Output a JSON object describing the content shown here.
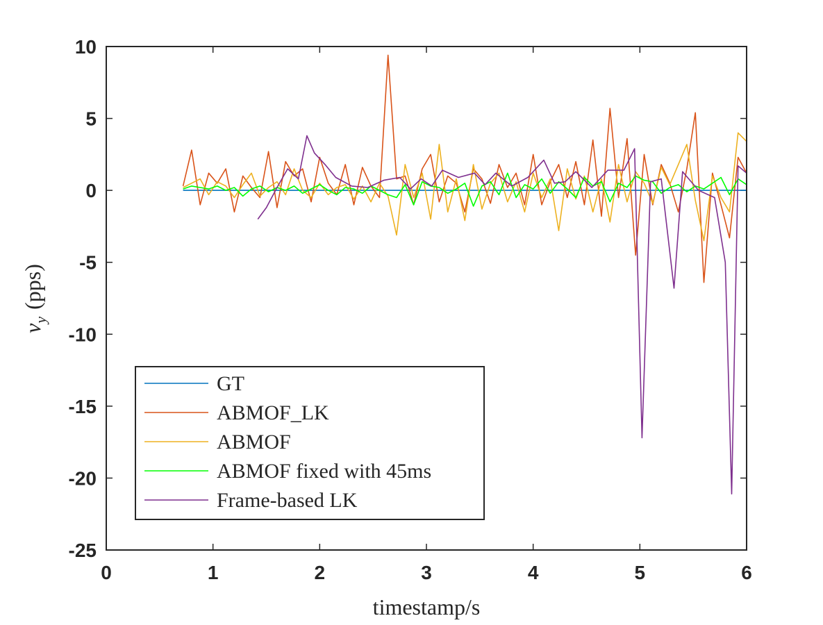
{
  "chart_data": {
    "type": "line",
    "xlabel": "timestamp/s",
    "ylabel": {
      "symbol": "v",
      "subscript": "y",
      "unit": "(pps)"
    },
    "xlim": [
      0,
      6
    ],
    "xticks": [
      0,
      1,
      2,
      3,
      4,
      5,
      6
    ],
    "ylim": [
      -25,
      10
    ],
    "yticks": [
      -25,
      -20,
      -15,
      -10,
      -5,
      0,
      5,
      10
    ],
    "grid": false,
    "legend": "lower left",
    "series": [
      {
        "name": "GT",
        "color": "#0072bd",
        "x": [
          0.72,
          6.0
        ],
        "values": [
          0,
          0
        ]
      },
      {
        "name": "ABMOF_LK",
        "color": "#d95319",
        "x": [
          0.72,
          0.8,
          0.88,
          0.96,
          1.04,
          1.12,
          1.2,
          1.28,
          1.36,
          1.44,
          1.52,
          1.6,
          1.68,
          1.76,
          1.84,
          1.92,
          2.0,
          2.08,
          2.16,
          2.24,
          2.32,
          2.4,
          2.48,
          2.56,
          2.64,
          2.72,
          2.8,
          2.88,
          2.96,
          3.04,
          3.12,
          3.2,
          3.28,
          3.36,
          3.44,
          3.52,
          3.6,
          3.68,
          3.76,
          3.84,
          3.92,
          4.0,
          4.08,
          4.16,
          4.24,
          4.32,
          4.4,
          4.48,
          4.56,
          4.64,
          4.72,
          4.8,
          4.88,
          4.96,
          5.04,
          5.12,
          5.2,
          5.28,
          5.36,
          5.44,
          5.52,
          5.6,
          5.68,
          5.76,
          5.84,
          5.92,
          6.0
        ],
        "values": [
          0.3,
          2.8,
          -1.0,
          1.2,
          0.5,
          1.5,
          -1.5,
          1.0,
          0.2,
          -0.5,
          2.7,
          -1.2,
          2.0,
          1.0,
          1.5,
          -0.8,
          2.3,
          0.5,
          -0.3,
          1.8,
          -1.0,
          1.6,
          0.3,
          -0.5,
          9.4,
          0.8,
          1.0,
          -1.0,
          1.5,
          2.5,
          -0.8,
          1.0,
          0.5,
          -1.5,
          1.5,
          0.8,
          -0.9,
          1.8,
          0.2,
          1.2,
          -1.0,
          2.5,
          -1.0,
          0.6,
          1.8,
          -0.5,
          2.0,
          -1.0,
          3.5,
          -1.8,
          5.7,
          -0.5,
          3.6,
          -4.5,
          2.5,
          -1.0,
          1.8,
          0.5,
          -1.5,
          1.5,
          5.4,
          -6.4,
          1.2,
          -1.0,
          -3.3,
          2.3,
          1.2
        ]
      },
      {
        "name": "ABMOF",
        "color": "#edb120",
        "x": [
          0.72,
          0.8,
          0.88,
          0.96,
          1.04,
          1.12,
          1.2,
          1.28,
          1.36,
          1.44,
          1.52,
          1.6,
          1.68,
          1.76,
          1.84,
          1.92,
          2.0,
          2.08,
          2.16,
          2.24,
          2.32,
          2.4,
          2.48,
          2.56,
          2.64,
          2.72,
          2.8,
          2.88,
          2.96,
          3.04,
          3.12,
          3.2,
          3.28,
          3.36,
          3.44,
          3.52,
          3.6,
          3.68,
          3.76,
          3.84,
          3.92,
          4.0,
          4.08,
          4.16,
          4.24,
          4.32,
          4.4,
          4.48,
          4.56,
          4.64,
          4.72,
          4.8,
          4.88,
          4.96,
          5.04,
          5.12,
          5.2,
          5.28,
          5.36,
          5.44,
          5.52,
          5.6,
          5.68,
          5.76,
          5.84,
          5.92,
          6.0
        ],
        "values": [
          0.2,
          0.5,
          0.8,
          -0.3,
          0.6,
          0.3,
          -0.5,
          0.4,
          1.2,
          -0.4,
          0.2,
          0.6,
          -0.3,
          1.5,
          0.0,
          -0.5,
          0.5,
          -0.3,
          0.2,
          0.4,
          -0.6,
          0.3,
          -0.8,
          0.5,
          -0.4,
          -3.1,
          1.8,
          -0.5,
          1.2,
          -2.0,
          3.2,
          -1.5,
          0.8,
          -2.1,
          1.8,
          -1.3,
          0.5,
          1.2,
          -0.8,
          0.6,
          -1.5,
          1.2,
          -0.5,
          0.8,
          -2.8,
          1.5,
          -0.6,
          1.0,
          -1.5,
          0.8,
          -2.2,
          1.8,
          -0.8,
          1.3,
          0.5,
          -0.9,
          1.6,
          0.4,
          1.8,
          3.2,
          -0.7,
          -3.5,
          1.0,
          -0.5,
          -1.5,
          4.0,
          3.4
        ]
      },
      {
        "name": "ABMOF fixed with 45ms",
        "color": "#00ff00",
        "x": [
          0.72,
          0.8,
          0.88,
          0.96,
          1.04,
          1.12,
          1.2,
          1.28,
          1.36,
          1.44,
          1.52,
          1.6,
          1.68,
          1.76,
          1.84,
          1.92,
          2.0,
          2.08,
          2.16,
          2.24,
          2.32,
          2.4,
          2.48,
          2.56,
          2.64,
          2.72,
          2.8,
          2.88,
          2.96,
          3.04,
          3.12,
          3.2,
          3.28,
          3.36,
          3.44,
          3.52,
          3.6,
          3.68,
          3.76,
          3.84,
          3.92,
          4.0,
          4.08,
          4.16,
          4.24,
          4.32,
          4.4,
          4.48,
          4.56,
          4.64,
          4.72,
          4.8,
          4.88,
          4.96,
          5.04,
          5.12,
          5.2,
          5.28,
          5.36,
          5.44,
          5.52,
          5.6,
          5.68,
          5.76,
          5.84,
          5.92,
          6.0
        ],
        "values": [
          0.1,
          0.3,
          0.2,
          0.1,
          0.3,
          0.0,
          0.2,
          -0.4,
          0.1,
          0.3,
          -0.1,
          0.2,
          0.0,
          0.3,
          -0.2,
          0.1,
          0.4,
          0.0,
          -0.3,
          0.2,
          0.1,
          -0.2,
          0.3,
          0.0,
          -0.3,
          -0.5,
          0.4,
          -1.0,
          0.6,
          0.3,
          0.2,
          -0.2,
          0.1,
          0.5,
          -1.1,
          0.3,
          0.6,
          -0.3,
          1.2,
          -0.5,
          0.4,
          0.1,
          0.8,
          -0.2,
          0.6,
          0.1,
          -0.5,
          0.9,
          0.3,
          0.6,
          -0.8,
          0.5,
          0.2,
          1.0,
          0.7,
          0.6,
          -0.2,
          0.2,
          0.4,
          -0.1,
          0.3,
          0.1,
          0.5,
          0.9,
          -0.3,
          0.8,
          0.4
        ]
      },
      {
        "name": "Frame-based LK",
        "color": "#7e2f8e",
        "x": [
          1.42,
          1.5,
          1.6,
          1.7,
          1.8,
          1.88,
          1.95,
          2.05,
          2.15,
          2.3,
          2.45,
          2.6,
          2.75,
          2.85,
          2.95,
          3.05,
          3.15,
          3.3,
          3.45,
          3.55,
          3.65,
          3.8,
          3.95,
          4.1,
          4.2,
          4.3,
          4.4,
          4.55,
          4.7,
          4.85,
          4.95,
          5.02,
          5.1,
          5.2,
          5.32,
          5.4,
          5.55,
          5.7,
          5.8,
          5.86,
          5.92,
          6.0
        ],
        "values": [
          -2.0,
          -1.2,
          0.2,
          1.5,
          0.8,
          3.8,
          2.6,
          1.8,
          0.9,
          0.3,
          0.2,
          0.7,
          0.9,
          0.1,
          0.8,
          0.3,
          1.4,
          0.9,
          1.2,
          0.4,
          1.2,
          0.3,
          0.9,
          2.1,
          0.5,
          0.6,
          1.3,
          0.2,
          1.4,
          1.4,
          2.9,
          -17.2,
          0.6,
          0.8,
          -6.8,
          1.3,
          0.0,
          -0.5,
          -5.0,
          -21.1,
          1.7,
          1.2
        ]
      }
    ]
  }
}
